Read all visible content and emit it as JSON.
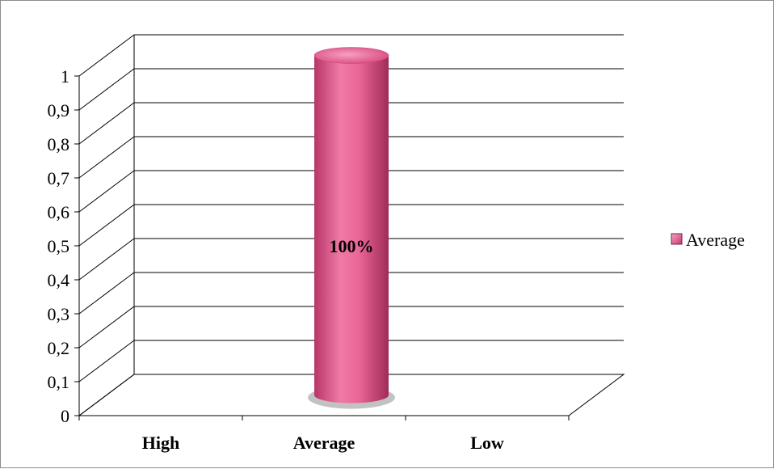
{
  "chart_data": {
    "type": "bar",
    "style": "3d-cylinder",
    "categories": [
      "High",
      "Average",
      "Low"
    ],
    "series": [
      {
        "name": "Average",
        "values": [
          0,
          1,
          0
        ],
        "color": "#e85a8a"
      }
    ],
    "data_labels": [
      "",
      "100%",
      ""
    ],
    "ylim": [
      0,
      1
    ],
    "yticks": [
      "0",
      "0,1",
      "0,2",
      "0,3",
      "0,4",
      "0,5",
      "0,6",
      "0,7",
      "0,8",
      "0,9",
      "1"
    ],
    "grid": true,
    "legend": "right",
    "colors": {
      "bar": "#e85a8a",
      "bar_light": "#f590b4",
      "bar_dark": "#a82e5a",
      "grid": "#000000"
    }
  }
}
